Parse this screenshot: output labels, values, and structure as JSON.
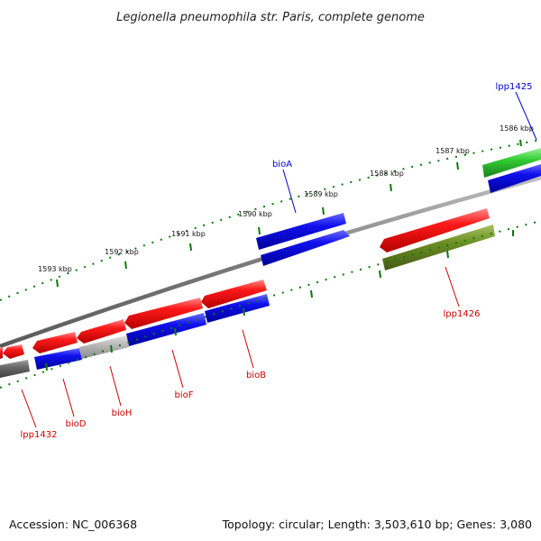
{
  "title": "Legionella pneumophila str. Paris, complete genome",
  "footer": {
    "accession": "Accession: NC_006368",
    "summary": "Topology: circular; Length: 3,503,610 bp; Genes: 3,080"
  },
  "colors": {
    "forward_gene": "#ff0000",
    "reverse_gene": "#0000ee",
    "backbone": "#808080",
    "tick": "#0a7a0a",
    "highlight_green": "#33cc33",
    "olive": "#6b8e23",
    "red_label": "#cc0000",
    "blue_label": "#0000cc"
  },
  "scale_ticks": [
    "1586 kbp",
    "1587 kbp",
    "1588 kbp",
    "1589 kbp",
    "1590 kbp",
    "1591 kbp",
    "1592 kbp",
    "1593 kbp"
  ],
  "gene_labels": [
    {
      "text": "lpp1425",
      "color": "blue"
    },
    {
      "text": "bioA",
      "color": "blue"
    },
    {
      "text": "lpp1426",
      "color": "red"
    },
    {
      "text": "bioB",
      "color": "red"
    },
    {
      "text": "bioF",
      "color": "red"
    },
    {
      "text": "bioH",
      "color": "red"
    },
    {
      "text": "bioD",
      "color": "red"
    },
    {
      "text": "lpp1432",
      "color": "red"
    }
  ]
}
